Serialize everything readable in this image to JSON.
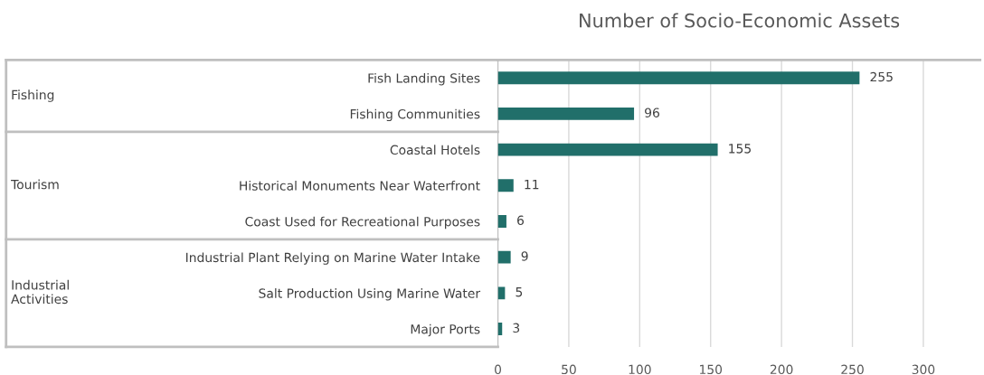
{
  "chart_data": {
    "type": "bar",
    "orientation": "horizontal",
    "title": "Number of Socio-Economic Assets",
    "categories": [
      "Fish Landing Sites",
      "Fishing Communities",
      "Coastal Hotels",
      "Historical Monuments Near Waterfront",
      "Coast Used for Recreational Purposes",
      "Industrial Plant Relying on Marine Water Intake",
      "Salt Production Using Marine Water",
      "Major Ports"
    ],
    "values": [
      255,
      96,
      155,
      11,
      6,
      9,
      5,
      3
    ],
    "color": "#216f6a",
    "xlim": [
      0,
      340
    ],
    "xticks": [
      0,
      50,
      100,
      150,
      200,
      250,
      300
    ],
    "grid": "x",
    "data_labels": true,
    "legend": false,
    "annotations": [
      "Fishing",
      "Tourism",
      "Industrial\nActivities"
    ]
  }
}
